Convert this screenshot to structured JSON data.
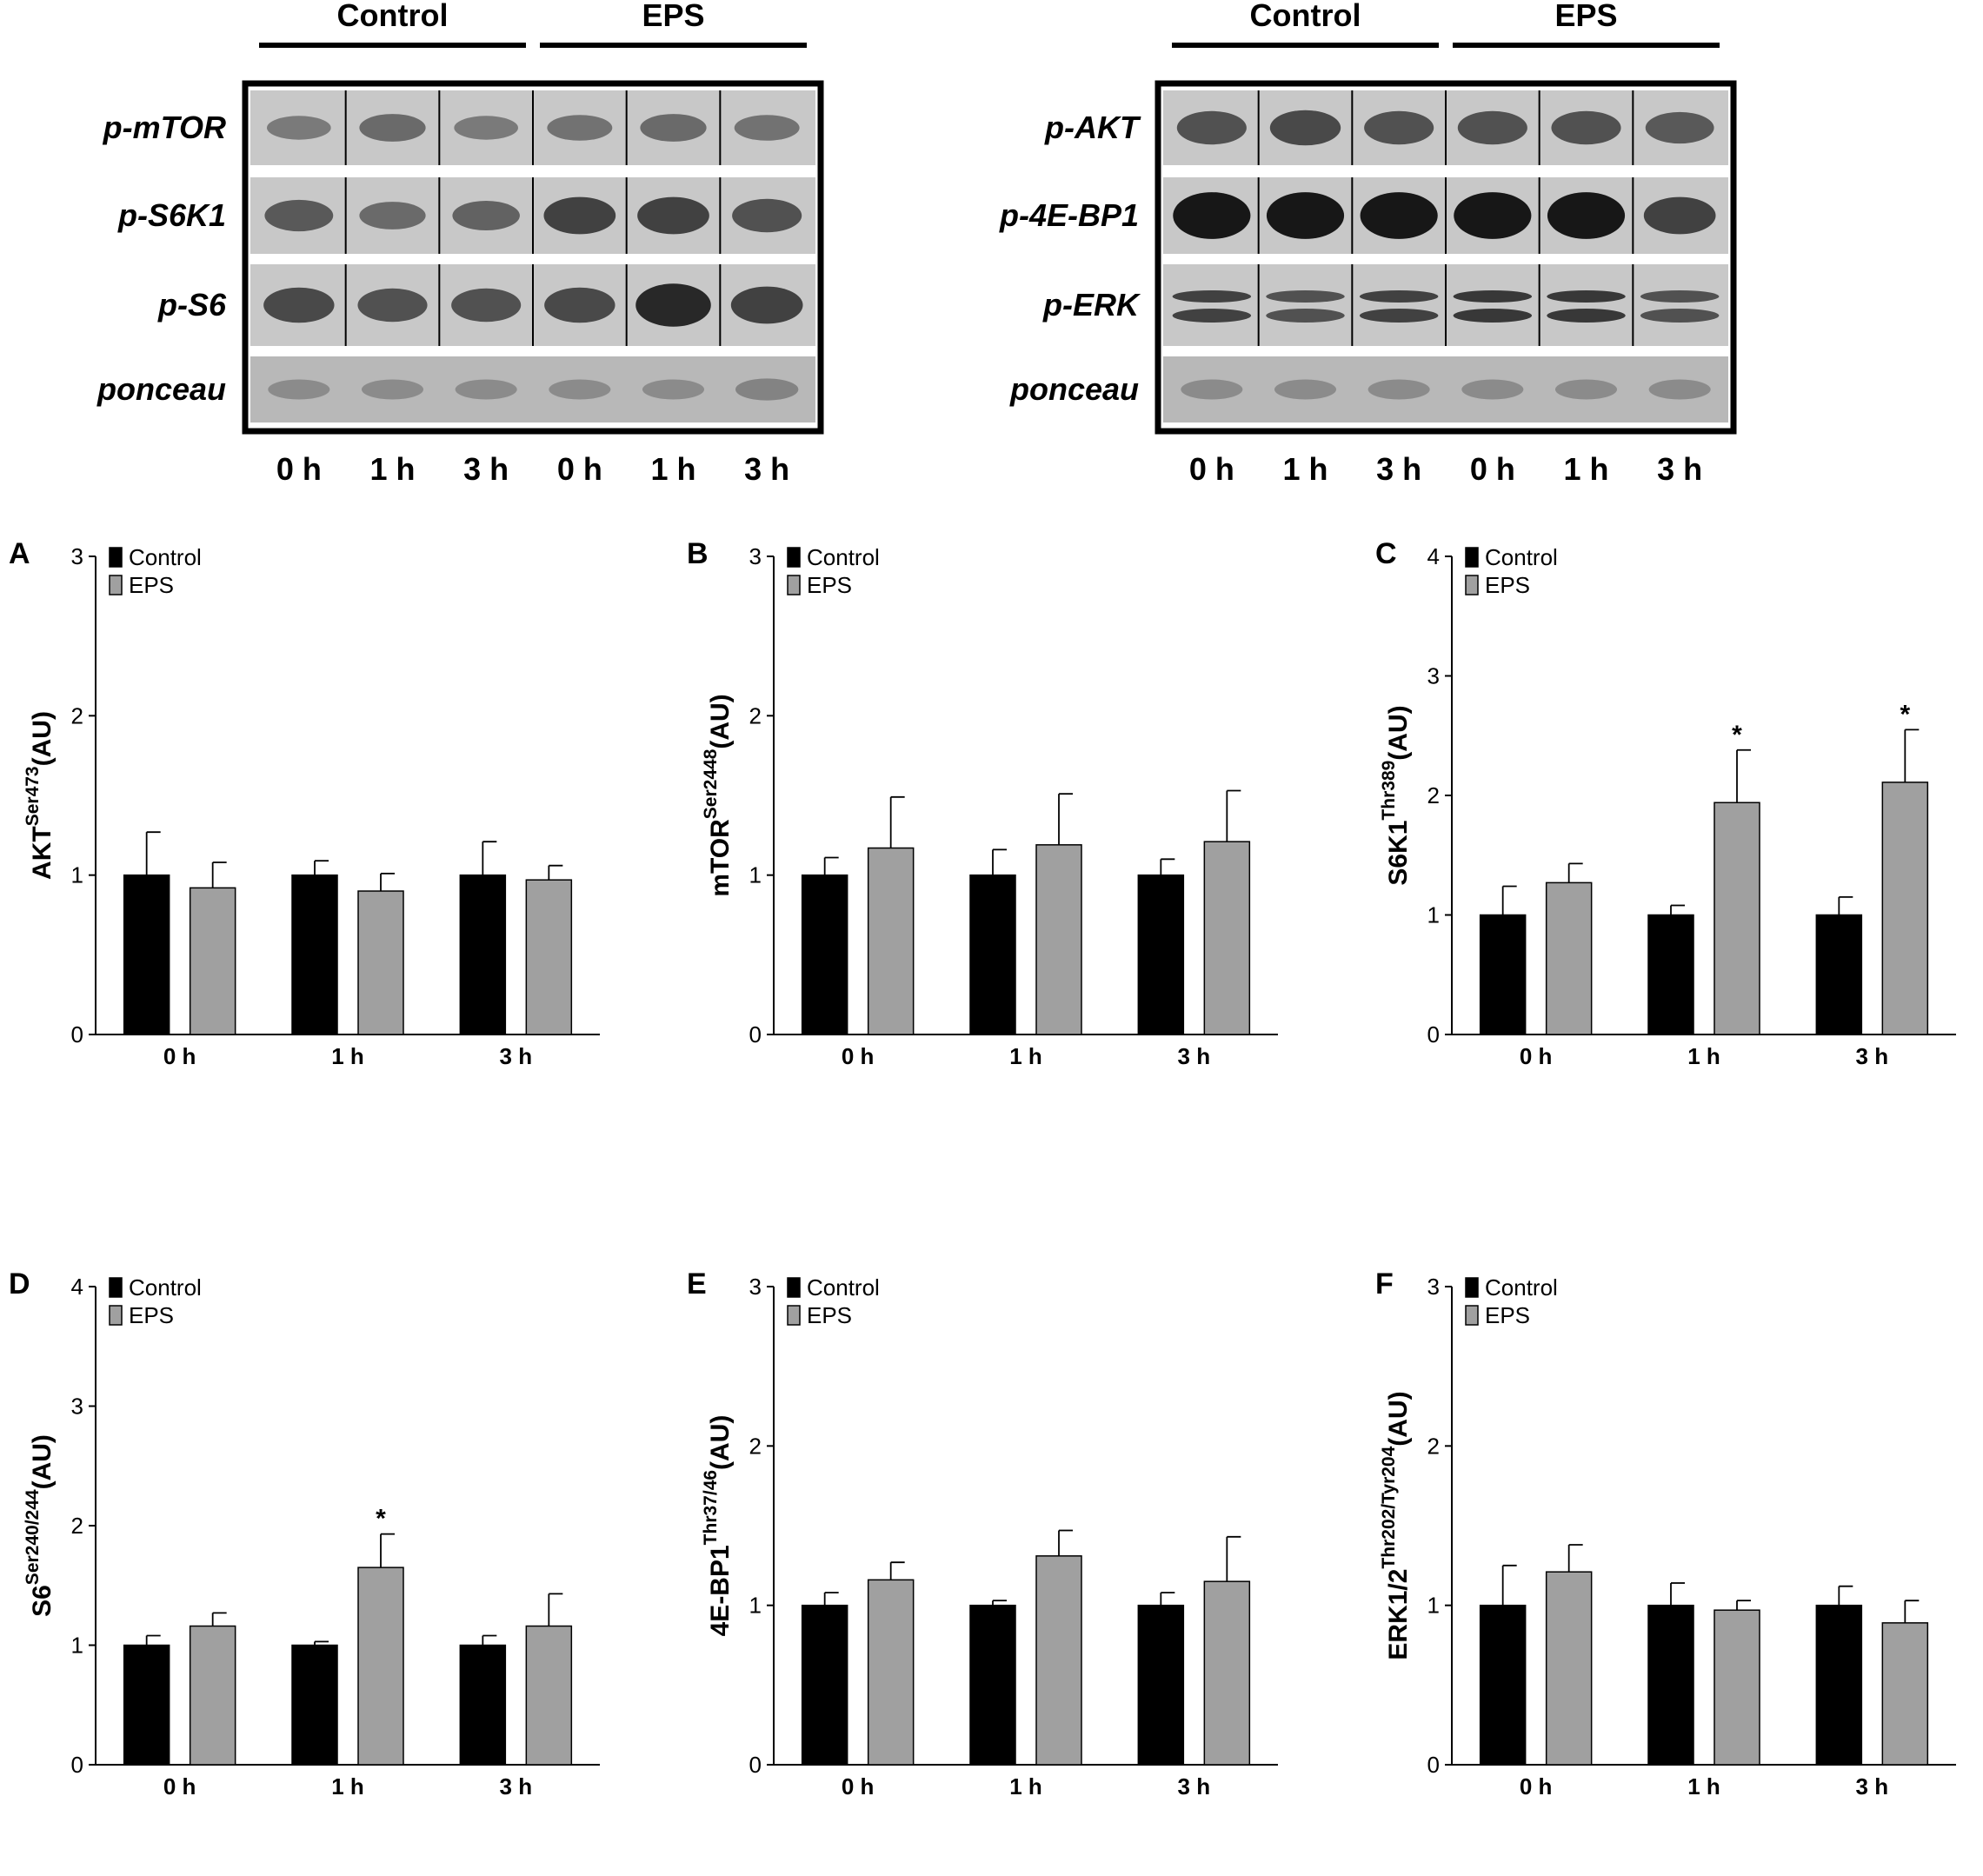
{
  "western_blots": [
    {
      "group_labels": [
        "Control",
        "EPS"
      ],
      "rows": [
        {
          "label": "p-mTOR",
          "bands": [
            0.35,
            0.45,
            0.35,
            0.4,
            0.45,
            0.4
          ],
          "double": false
        },
        {
          "label": "p-S6K1",
          "bands": [
            0.55,
            0.45,
            0.5,
            0.7,
            0.7,
            0.6
          ],
          "double": false
        },
        {
          "label": "p-S6",
          "bands": [
            0.65,
            0.6,
            0.6,
            0.65,
            0.85,
            0.7
          ],
          "double": false
        },
        {
          "label": "ponceau",
          "bands": [
            0.25,
            0.25,
            0.25,
            0.25,
            0.25,
            0.3
          ],
          "double": false
        }
      ],
      "lane_labels": [
        "0 h",
        "1 h",
        "3 h",
        "0 h",
        "1 h",
        "3 h"
      ]
    },
    {
      "group_labels": [
        "Control",
        "EPS"
      ],
      "rows": [
        {
          "label": "p-AKT",
          "bands": [
            0.6,
            0.65,
            0.6,
            0.6,
            0.6,
            0.55
          ],
          "double": false
        },
        {
          "label": "p-4E-BP1",
          "bands": [
            0.95,
            0.95,
            0.95,
            0.95,
            0.95,
            0.7
          ],
          "double": false
        },
        {
          "label": "p-ERK",
          "bands": [
            0.7,
            0.6,
            0.7,
            0.75,
            0.75,
            0.6
          ],
          "double": true
        },
        {
          "label": "ponceau",
          "bands": [
            0.25,
            0.25,
            0.25,
            0.25,
            0.25,
            0.25
          ],
          "double": false
        }
      ],
      "lane_labels": [
        "0 h",
        "1 h",
        "3 h",
        "0 h",
        "1 h",
        "3 h"
      ]
    }
  ],
  "chart_data": [
    {
      "panel": "A",
      "type": "bar",
      "categories": [
        "0 h",
        "1 h",
        "3 h"
      ],
      "ylabel": {
        "base": "AKT",
        "sup": "Ser473",
        "unit": "(AU)"
      },
      "ylim": [
        0,
        3
      ],
      "yticks": [
        0,
        1,
        2,
        3
      ],
      "series": [
        {
          "name": "Control",
          "color": "#000000",
          "values": [
            1.0,
            1.0,
            1.0
          ],
          "errors": [
            0.27,
            0.09,
            0.21
          ],
          "stars": [
            false,
            false,
            false
          ]
        },
        {
          "name": "EPS",
          "color": "#a0a0a0",
          "values": [
            0.92,
            0.9,
            0.97
          ],
          "errors": [
            0.16,
            0.11,
            0.09
          ],
          "stars": [
            false,
            false,
            false
          ]
        }
      ]
    },
    {
      "panel": "B",
      "type": "bar",
      "categories": [
        "0 h",
        "1 h",
        "3 h"
      ],
      "ylabel": {
        "base": "mTOR",
        "sup": "Ser2448",
        "unit": "(AU)"
      },
      "ylim": [
        0,
        3
      ],
      "yticks": [
        0,
        1,
        2,
        3
      ],
      "series": [
        {
          "name": "Control",
          "color": "#000000",
          "values": [
            1.0,
            1.0,
            1.0
          ],
          "errors": [
            0.11,
            0.16,
            0.1
          ],
          "stars": [
            false,
            false,
            false
          ]
        },
        {
          "name": "EPS",
          "color": "#a0a0a0",
          "values": [
            1.17,
            1.19,
            1.21
          ],
          "errors": [
            0.32,
            0.32,
            0.32
          ],
          "stars": [
            false,
            false,
            false
          ]
        }
      ]
    },
    {
      "panel": "C",
      "type": "bar",
      "categories": [
        "0 h",
        "1 h",
        "3 h"
      ],
      "ylabel": {
        "base": "S6K1",
        "sup": "Thr389",
        "unit": "(AU)"
      },
      "ylim": [
        0,
        4
      ],
      "yticks": [
        0,
        1,
        2,
        3,
        4
      ],
      "series": [
        {
          "name": "Control",
          "color": "#000000",
          "values": [
            1.0,
            1.0,
            1.0
          ],
          "errors": [
            0.24,
            0.08,
            0.15
          ],
          "stars": [
            false,
            false,
            false
          ]
        },
        {
          "name": "EPS",
          "color": "#a0a0a0",
          "values": [
            1.27,
            1.94,
            2.11
          ],
          "errors": [
            0.16,
            0.44,
            0.44
          ],
          "stars": [
            false,
            true,
            true
          ]
        }
      ]
    },
    {
      "panel": "D",
      "type": "bar",
      "categories": [
        "0 h",
        "1 h",
        "3 h"
      ],
      "ylabel": {
        "base": "S6",
        "sup": "Ser240/244",
        "unit": "(AU)"
      },
      "ylim": [
        0,
        4
      ],
      "yticks": [
        0,
        1,
        2,
        3,
        4
      ],
      "series": [
        {
          "name": "Control",
          "color": "#000000",
          "values": [
            1.0,
            1.0,
            1.0
          ],
          "errors": [
            0.08,
            0.03,
            0.08
          ],
          "stars": [
            false,
            false,
            false
          ]
        },
        {
          "name": "EPS",
          "color": "#a0a0a0",
          "values": [
            1.16,
            1.65,
            1.16
          ],
          "errors": [
            0.11,
            0.28,
            0.27
          ],
          "stars": [
            false,
            true,
            false
          ]
        }
      ]
    },
    {
      "panel": "E",
      "type": "bar",
      "categories": [
        "0 h",
        "1 h",
        "3 h"
      ],
      "ylabel": {
        "base": "4E-BP1",
        "sup": "Thr37/46",
        "unit": "(AU)"
      },
      "ylim": [
        0,
        3
      ],
      "yticks": [
        0,
        1,
        2,
        3
      ],
      "series": [
        {
          "name": "Control",
          "color": "#000000",
          "values": [
            1.0,
            1.0,
            1.0
          ],
          "errors": [
            0.08,
            0.03,
            0.08
          ],
          "stars": [
            false,
            false,
            false
          ]
        },
        {
          "name": "EPS",
          "color": "#a0a0a0",
          "values": [
            1.16,
            1.31,
            1.15
          ],
          "errors": [
            0.11,
            0.16,
            0.28
          ],
          "stars": [
            false,
            false,
            false
          ]
        }
      ]
    },
    {
      "panel": "F",
      "type": "bar",
      "categories": [
        "0 h",
        "1 h",
        "3 h"
      ],
      "ylabel": {
        "base": "ERK1/2",
        "sup": "Thr202/Tyr204",
        "unit": "(AU)"
      },
      "ylim": [
        0,
        3
      ],
      "yticks": [
        0,
        1,
        2,
        3
      ],
      "series": [
        {
          "name": "Control",
          "color": "#000000",
          "values": [
            1.0,
            1.0,
            1.0
          ],
          "errors": [
            0.25,
            0.14,
            0.12
          ],
          "stars": [
            false,
            false,
            false
          ]
        },
        {
          "name": "EPS",
          "color": "#a0a0a0",
          "values": [
            1.21,
            0.97,
            0.89
          ],
          "errors": [
            0.17,
            0.06,
            0.14
          ],
          "stars": [
            false,
            false,
            false
          ]
        }
      ]
    }
  ]
}
